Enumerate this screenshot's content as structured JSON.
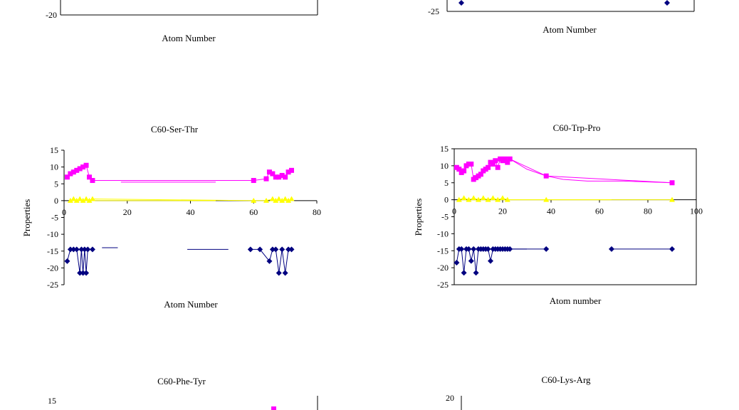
{
  "colors": {
    "magenta": "#ff00ff",
    "yellow": "#ffff00",
    "navy": "#000080"
  },
  "chart_data": [
    {
      "id": "top-left",
      "type": "line",
      "title": "",
      "xlabel": "Atom Number",
      "ylabel": "",
      "ytick_labels": [
        "-20"
      ],
      "xtick_labels": [],
      "series": []
    },
    {
      "id": "top-right",
      "type": "line",
      "title": "",
      "xlabel": "Atom Number",
      "ylabel": "",
      "ytick_labels": [
        "-25"
      ],
      "xtick_labels": [],
      "series": [
        {
          "name": "",
          "color": "#000080",
          "marker": "diamond",
          "x": [
            3,
            78
          ],
          "y": [
            -25,
            -25
          ]
        }
      ]
    },
    {
      "id": "middle-left",
      "type": "line",
      "title": "C60-Ser-Thr",
      "xlabel": "Atom Number",
      "ylabel": "Properties",
      "xlim": [
        0,
        80
      ],
      "ylim": [
        -25,
        15
      ],
      "yticks": [
        15,
        10,
        5,
        0,
        -5,
        -10,
        -15,
        -20,
        -25
      ],
      "ytick_labels": [
        "15",
        "10",
        "5",
        "0",
        "-5",
        "-10",
        "-15",
        "-20",
        "-25"
      ],
      "xticks": [
        0,
        20,
        40,
        60,
        80
      ],
      "xtick_labels": [
        "0",
        "20",
        "40",
        "60",
        "80"
      ],
      "series": [
        {
          "name": "",
          "color": "#ff00ff",
          "marker": "square",
          "x": [
            1,
            2,
            3,
            4,
            5,
            6,
            7,
            8,
            9,
            60,
            64,
            65,
            66,
            67,
            68,
            69,
            70,
            71,
            72
          ],
          "y": [
            7,
            8,
            8.5,
            9,
            9.5,
            10,
            10.5,
            7,
            6,
            6,
            6.5,
            8.5,
            8,
            7,
            7,
            7.5,
            7,
            8.5,
            9
          ]
        },
        {
          "name": "",
          "color": "#ff00ff",
          "marker": "none",
          "x": [
            18,
            48
          ],
          "y": [
            5.5,
            5.5
          ]
        },
        {
          "name": "",
          "color": "#ffff00",
          "marker": "triangle",
          "x": [
            2,
            3,
            4,
            5,
            6,
            7,
            8,
            9,
            60,
            64,
            66,
            67,
            68,
            69,
            70,
            71,
            72
          ],
          "y": [
            0,
            0.5,
            0,
            0.5,
            0,
            0.5,
            0,
            0.5,
            0,
            0,
            0.5,
            0,
            0.5,
            0,
            0.5,
            0,
            0.5
          ]
        },
        {
          "name": "",
          "color": "#ffff00",
          "marker": "none",
          "x": [
            9,
            48
          ],
          "y": [
            0,
            0
          ]
        },
        {
          "name": "",
          "color": "#000080",
          "marker": "diamond",
          "x": [
            1,
            2,
            3,
            4,
            5,
            5.5,
            6,
            6.5,
            7,
            7.5,
            9
          ],
          "y": [
            -18,
            -14.5,
            -14.5,
            -14.5,
            -21.5,
            -14.5,
            -21.5,
            -14.5,
            -21.5,
            -14.5,
            -14.5
          ]
        },
        {
          "name": "",
          "color": "#000080",
          "marker": "none",
          "x": [
            12,
            17
          ],
          "y": [
            -14,
            -14
          ]
        },
        {
          "name": "",
          "color": "#000080",
          "marker": "none",
          "x": [
            39,
            52
          ],
          "y": [
            -14.5,
            -14.5
          ]
        },
        {
          "name": "",
          "color": "#000080",
          "marker": "diamond",
          "x": [
            59,
            62,
            65,
            66,
            67,
            68,
            69,
            70,
            71,
            72
          ],
          "y": [
            -14.5,
            -14.5,
            -18,
            -14.5,
            -14.5,
            -21.5,
            -14.5,
            -21.5,
            -14.5,
            -14.5
          ]
        }
      ]
    },
    {
      "id": "middle-right",
      "type": "line",
      "title": "C60-Trp-Pro",
      "xlabel": "Atom number",
      "ylabel": "Properties",
      "xlim": [
        0,
        100
      ],
      "ylim": [
        -25,
        15
      ],
      "yticks": [
        15,
        10,
        5,
        0,
        -5,
        -10,
        -15,
        -20,
        -25
      ],
      "ytick_labels": [
        "15",
        "10",
        "5",
        "0",
        "-5",
        "-10",
        "-15",
        "-20",
        "-25"
      ],
      "xticks": [
        0,
        20,
        40,
        60,
        80,
        100
      ],
      "xtick_labels": [
        "0",
        "20",
        "40",
        "60",
        "80",
        "100"
      ],
      "series": [
        {
          "name": "",
          "color": "#ff00ff",
          "marker": "square",
          "x": [
            1,
            2,
            3,
            4,
            5,
            6,
            7,
            8,
            9,
            10,
            11,
            12,
            13,
            14,
            15,
            16,
            17,
            18,
            19,
            20,
            21,
            22,
            23,
            38,
            90
          ],
          "y": [
            9.5,
            9,
            8,
            8.5,
            10,
            10.5,
            10.5,
            6,
            6.5,
            7,
            7.5,
            8.5,
            9,
            9.5,
            11,
            10.5,
            11.5,
            9.5,
            12,
            11.5,
            12,
            11,
            12,
            7,
            5
          ]
        },
        {
          "name": "",
          "color": "#ff00ff",
          "marker": "none",
          "x": [
            23,
            30,
            38,
            45,
            55,
            70,
            90
          ],
          "y": [
            12,
            9,
            7,
            6,
            5.5,
            5.5,
            5
          ]
        },
        {
          "name": "",
          "color": "#ffff00",
          "marker": "triangle",
          "x": [
            2,
            4,
            6,
            8,
            10,
            12,
            14,
            16,
            18,
            20,
            22,
            38,
            90
          ],
          "y": [
            0,
            0.5,
            0,
            0.5,
            0,
            0.5,
            0,
            0.5,
            0,
            0.5,
            0,
            0,
            0
          ]
        },
        {
          "name": "",
          "color": "#ffff00",
          "marker": "none",
          "x": [
            22,
            65
          ],
          "y": [
            0,
            0
          ]
        },
        {
          "name": "",
          "color": "#000080",
          "marker": "diamond",
          "x": [
            1,
            2,
            3,
            4,
            5,
            6,
            7,
            8,
            9,
            10,
            11,
            12,
            13,
            14,
            15,
            16,
            17,
            18,
            19,
            20,
            21,
            22,
            23,
            38
          ],
          "y": [
            -18.5,
            -14.5,
            -14.5,
            -21.5,
            -14.5,
            -14.5,
            -18,
            -14.5,
            -21.5,
            -14.5,
            -14.5,
            -14.5,
            -14.5,
            -14.5,
            -18,
            -14.5,
            -14.5,
            -14.5,
            -14.5,
            -14.5,
            -14.5,
            -14.5,
            -14.5,
            -14.5
          ]
        },
        {
          "name": "",
          "color": "#000080",
          "marker": "none",
          "x": [
            23,
            30
          ],
          "y": [
            -14.5,
            -14.5
          ]
        },
        {
          "name": "",
          "color": "#000080",
          "marker": "diamond",
          "x": [
            65,
            90
          ],
          "y": [
            -14.5,
            -14.5
          ]
        }
      ]
    },
    {
      "id": "bottom-left",
      "type": "line",
      "title": "C60-Phe-Tyr",
      "xlabel": "",
      "ylabel": "",
      "ytick_labels": [
        "15"
      ],
      "xtick_labels": [],
      "series": [
        {
          "name": "",
          "color": "#ff00ff",
          "marker": "square",
          "x": [
            85
          ],
          "y": [
            14
          ]
        }
      ]
    },
    {
      "id": "bottom-right",
      "type": "line",
      "title": "C60-Lys-Arg",
      "xlabel": "",
      "ylabel": "",
      "ytick_labels": [
        "20"
      ],
      "xtick_labels": [],
      "series": []
    }
  ]
}
